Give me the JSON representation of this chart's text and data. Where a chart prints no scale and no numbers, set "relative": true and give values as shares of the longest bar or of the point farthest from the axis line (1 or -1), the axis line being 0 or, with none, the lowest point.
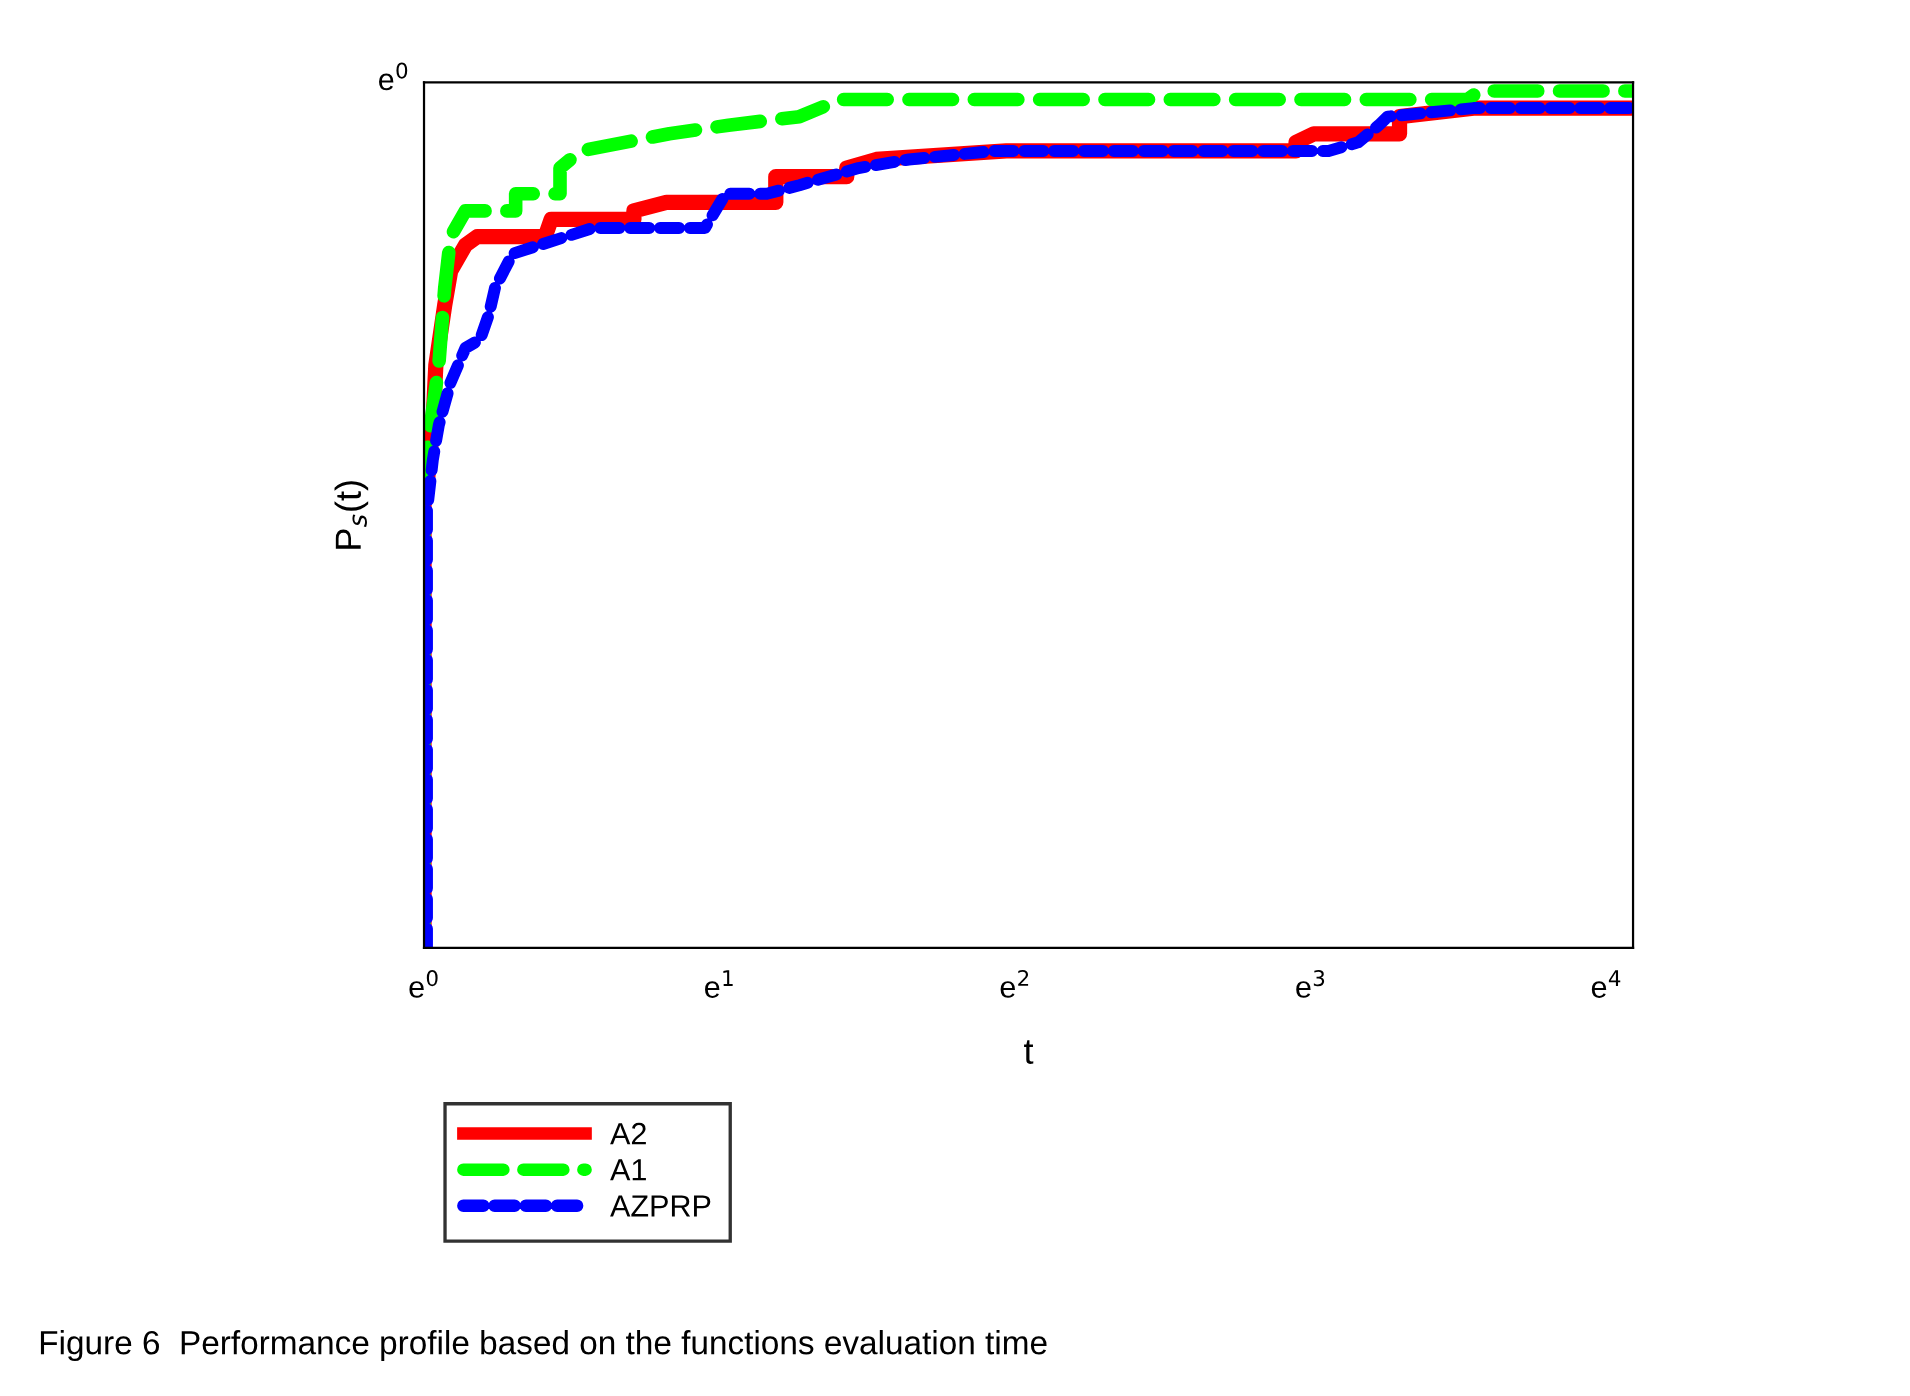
{
  "chart_data": {
    "type": "line",
    "xlabel": "t",
    "ylabel": "P$_{s}$(t)",
    "xlim": [
      0,
      4.09
    ],
    "xticks": [
      {
        "value": 0,
        "label": "e$^{0}$"
      },
      {
        "value": 1,
        "label": "e$^{1}$"
      },
      {
        "value": 2,
        "label": "e$^{2}$"
      },
      {
        "value": 3,
        "label": "e$^{3}$"
      },
      {
        "value": 4,
        "label": "e$^{4}$"
      }
    ],
    "relative": true,
    "grid": false,
    "legend": "bottom",
    "marker": "none",
    "annotations": [
      "e$^{0}$",
      "Figure 6  Performance profile based on the functions evaluation time"
    ],
    "series": [
      {
        "name": "A2",
        "color": "#ff0000",
        "line_style": "solid",
        "x": [
          0,
          0,
          0.01,
          0.03,
          0.04,
          0.07,
          0.09,
          0.14,
          0.18,
          0.41,
          0.43,
          0.71,
          0.71,
          0.82,
          1.19,
          1.19,
          1.43,
          1.43,
          1.53,
          1.97,
          2.95,
          2.95,
          3.01,
          3.3,
          3.3,
          3.55,
          4.09
        ],
        "values": [
          0,
          0.52,
          0.54,
          0.61,
          0.68,
          0.75,
          0.79,
          0.82,
          0.83,
          0.83,
          0.85,
          0.85,
          0.86,
          0.87,
          0.87,
          0.9,
          0.9,
          0.91,
          0.92,
          0.93,
          0.93,
          0.94,
          0.95,
          0.95,
          0.97,
          0.98,
          0.98
        ]
      },
      {
        "name": "A1",
        "color": "#00ff00",
        "line_style": "dashed",
        "x": [
          0,
          0,
          0.01,
          0.03,
          0.05,
          0.07,
          0.09,
          0.14,
          0.31,
          0.31,
          0.46,
          0.46,
          0.53,
          0.83,
          1.03,
          1.27,
          1.41,
          3.53,
          3.57,
          4.09
        ],
        "values": [
          0,
          0.56,
          0.58,
          0.63,
          0.68,
          0.77,
          0.83,
          0.86,
          0.86,
          0.88,
          0.88,
          0.91,
          0.93,
          0.95,
          0.96,
          0.97,
          0.99,
          0.99,
          1.0,
          1.0
        ]
      },
      {
        "name": "AZPRP",
        "color": "#0000ff",
        "line_style": "dotted",
        "x": [
          0.01,
          0.01,
          0.03,
          0.05,
          0.09,
          0.14,
          0.19,
          0.22,
          0.24,
          0.3,
          0.39,
          0.57,
          0.95,
          1.02,
          1.16,
          1.27,
          1.47,
          1.64,
          1.93,
          2.96,
          3.06,
          3.16,
          3.23,
          3.26,
          3.55,
          4.09
        ],
        "values": [
          0,
          0.51,
          0.57,
          0.61,
          0.66,
          0.7,
          0.71,
          0.74,
          0.77,
          0.81,
          0.82,
          0.84,
          0.84,
          0.88,
          0.88,
          0.89,
          0.91,
          0.92,
          0.93,
          0.93,
          0.93,
          0.94,
          0.96,
          0.97,
          0.98,
          0.98
        ]
      }
    ]
  }
}
